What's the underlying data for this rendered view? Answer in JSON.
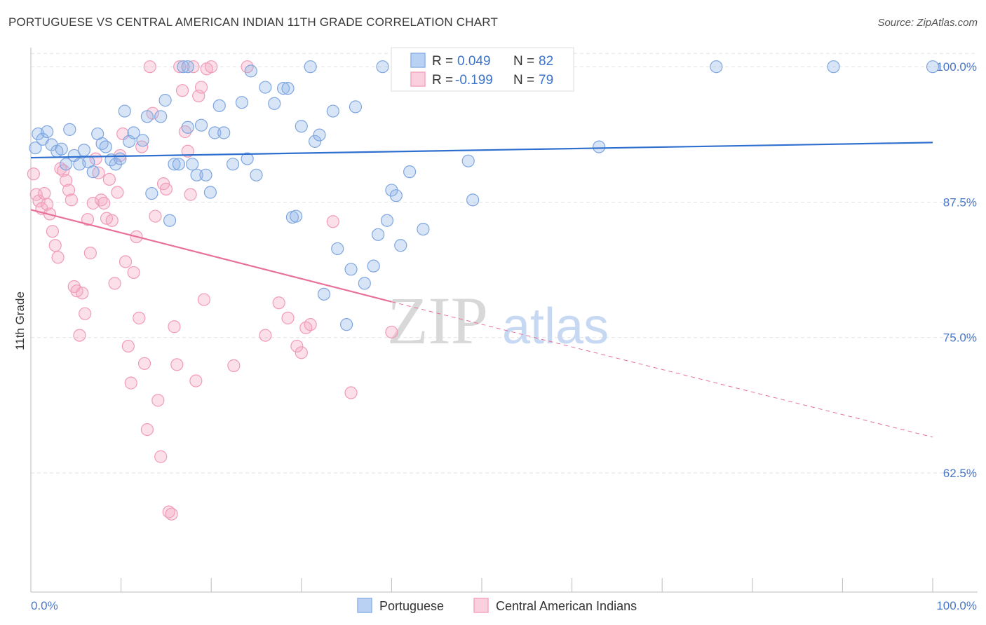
{
  "header": {
    "title": "PORTUGUESE VS CENTRAL AMERICAN INDIAN 11TH GRADE CORRELATION CHART",
    "source": "Source: ZipAtlas.com"
  },
  "watermark": {
    "zip": "ZIP",
    "atlas": "atlas"
  },
  "colors": {
    "blue": "#8fb4e8",
    "blue_line": "#2f6fcf",
    "pink": "#f4a6c0",
    "pink_line": "#e8709a",
    "axis_text": "#4a78c8"
  },
  "stats_legend": {
    "rows": [
      {
        "r_label": "R =",
        "r_value": "0.049",
        "n_label": "N =",
        "n_value": "82"
      },
      {
        "r_label": "R =",
        "r_value": "-0.199",
        "n_label": "N =",
        "n_value": "79"
      }
    ]
  },
  "chart_data": {
    "type": "scatter",
    "xlabel": "",
    "ylabel": "11th Grade",
    "xlim": [
      0,
      100
    ],
    "ylim": [
      51.5,
      101.5
    ],
    "x_ticks": [
      {
        "value": 0,
        "label": "0.0%"
      },
      {
        "value": 100,
        "label": "100.0%"
      }
    ],
    "y_ticks": [
      {
        "value": 100,
        "label": "100.0%"
      },
      {
        "value": 87.5,
        "label": "87.5%"
      },
      {
        "value": 75,
        "label": "75.0%"
      },
      {
        "value": 62.5,
        "label": "62.5%"
      }
    ],
    "grid": true,
    "legend_position": "bottom",
    "series": [
      {
        "name": "Portuguese",
        "color": "#8fb4e8",
        "trend": {
          "x0": 0,
          "y0": 91.6,
          "x1": 100,
          "y1": 93.0,
          "dashed_after": null
        },
        "points": [
          [
            0.5,
            92.5
          ],
          [
            0.8,
            93.8
          ],
          [
            1.3,
            93.3
          ],
          [
            1.8,
            94
          ],
          [
            2.3,
            92.8
          ],
          [
            2.9,
            92.2
          ],
          [
            3.4,
            92.4
          ],
          [
            3.9,
            91
          ],
          [
            4.3,
            94.2
          ],
          [
            4.8,
            91.8
          ],
          [
            5.4,
            91
          ],
          [
            5.9,
            92.3
          ],
          [
            6.4,
            91.2
          ],
          [
            6.9,
            90.3
          ],
          [
            7.4,
            93.8
          ],
          [
            7.9,
            92.9
          ],
          [
            8.3,
            92.6
          ],
          [
            8.9,
            91.4
          ],
          [
            9.4,
            91
          ],
          [
            9.9,
            91.5
          ],
          [
            10.4,
            95.9
          ],
          [
            10.9,
            93.1
          ],
          [
            11.4,
            93.9
          ],
          [
            12.4,
            93.2
          ],
          [
            12.9,
            95.4
          ],
          [
            13.4,
            88.3
          ],
          [
            14.4,
            95.4
          ],
          [
            14.9,
            96.9
          ],
          [
            15.4,
            85.8
          ],
          [
            15.9,
            91
          ],
          [
            16.4,
            91
          ],
          [
            16.9,
            100
          ],
          [
            17.4,
            100
          ],
          [
            17.4,
            94.4
          ],
          [
            17.9,
            91
          ],
          [
            18.4,
            90
          ],
          [
            18.9,
            94.6
          ],
          [
            19.4,
            90
          ],
          [
            19.9,
            88.4
          ],
          [
            20.4,
            93.9
          ],
          [
            20.9,
            96.4
          ],
          [
            21.4,
            93.9
          ],
          [
            22.4,
            91
          ],
          [
            23.4,
            96.7
          ],
          [
            24.0,
            91.5
          ],
          [
            24.4,
            99.6
          ],
          [
            25.0,
            90
          ],
          [
            26.0,
            98.1
          ],
          [
            27.0,
            96.6
          ],
          [
            28.0,
            98
          ],
          [
            28.5,
            98
          ],
          [
            29.0,
            86.1
          ],
          [
            29.4,
            86.2
          ],
          [
            30.0,
            94.5
          ],
          [
            31.0,
            100
          ],
          [
            31.5,
            93.1
          ],
          [
            32.0,
            93.7
          ],
          [
            32.5,
            79
          ],
          [
            33.5,
            95.9
          ],
          [
            34.0,
            83.2
          ],
          [
            35.0,
            76.2
          ],
          [
            35.5,
            81.3
          ],
          [
            36.0,
            96.3
          ],
          [
            37.0,
            80
          ],
          [
            38.0,
            81.6
          ],
          [
            38.5,
            84.5
          ],
          [
            39.0,
            100
          ],
          [
            39.5,
            85.8
          ],
          [
            40.0,
            88.6
          ],
          [
            40.5,
            88.1
          ],
          [
            41.0,
            83.5
          ],
          [
            42.0,
            90.3
          ],
          [
            43.5,
            85
          ],
          [
            45.0,
            100
          ],
          [
            48.5,
            91.3
          ],
          [
            49.0,
            87.7
          ],
          [
            54.0,
            100
          ],
          [
            55.0,
            100
          ],
          [
            63.0,
            92.6
          ],
          [
            76.0,
            100
          ],
          [
            89.0,
            100
          ],
          [
            100.0,
            100
          ]
        ]
      },
      {
        "name": "Central American Indians",
        "color": "#f4a6c0",
        "trend": {
          "x0": 0,
          "y0": 86.8,
          "x1": 40,
          "y1": 78.3,
          "dash_to_x": 100,
          "dash_to_y": 65.8
        },
        "points": [
          [
            0.3,
            90.1
          ],
          [
            0.6,
            88.2
          ],
          [
            0.9,
            87.6
          ],
          [
            1.2,
            86.9
          ],
          [
            1.5,
            88.3
          ],
          [
            1.8,
            87.3
          ],
          [
            2.1,
            86.4
          ],
          [
            2.4,
            84.8
          ],
          [
            2.7,
            83.5
          ],
          [
            3.0,
            82.4
          ],
          [
            3.3,
            90.6
          ],
          [
            3.6,
            90.4
          ],
          [
            3.9,
            89.5
          ],
          [
            4.2,
            88.6
          ],
          [
            4.5,
            87.7
          ],
          [
            4.8,
            79.7
          ],
          [
            5.1,
            79.3
          ],
          [
            5.4,
            75.2
          ],
          [
            5.7,
            79.1
          ],
          [
            6.0,
            77.2
          ],
          [
            6.3,
            85.9
          ],
          [
            6.6,
            82.8
          ],
          [
            6.9,
            87.4
          ],
          [
            7.2,
            91.5
          ],
          [
            7.5,
            90.2
          ],
          [
            7.8,
            87.7
          ],
          [
            8.1,
            87.4
          ],
          [
            8.4,
            86
          ],
          [
            8.7,
            89.6
          ],
          [
            9.0,
            85.8
          ],
          [
            9.3,
            80
          ],
          [
            9.6,
            88.4
          ],
          [
            9.9,
            91.8
          ],
          [
            10.2,
            93.8
          ],
          [
            10.5,
            82
          ],
          [
            10.8,
            74.2
          ],
          [
            11.1,
            70.8
          ],
          [
            11.4,
            81
          ],
          [
            11.7,
            84.3
          ],
          [
            12.0,
            76.8
          ],
          [
            12.3,
            92.6
          ],
          [
            12.6,
            72.6
          ],
          [
            12.9,
            66.5
          ],
          [
            13.2,
            100
          ],
          [
            13.5,
            95.7
          ],
          [
            13.8,
            86.2
          ],
          [
            14.1,
            69.2
          ],
          [
            14.4,
            64
          ],
          [
            14.7,
            89.2
          ],
          [
            15.0,
            88.7
          ],
          [
            15.3,
            58.9
          ],
          [
            15.6,
            58.7
          ],
          [
            15.9,
            76
          ],
          [
            16.2,
            72.5
          ],
          [
            16.5,
            100
          ],
          [
            16.8,
            97.8
          ],
          [
            17.1,
            94
          ],
          [
            17.4,
            92.2
          ],
          [
            17.7,
            88.2
          ],
          [
            18.0,
            100
          ],
          [
            18.3,
            71
          ],
          [
            18.6,
            97.3
          ],
          [
            18.9,
            98.1
          ],
          [
            19.2,
            78.5
          ],
          [
            19.5,
            99.8
          ],
          [
            20.0,
            100
          ],
          [
            22.5,
            72.4
          ],
          [
            24.0,
            100
          ],
          [
            26.0,
            75.2
          ],
          [
            27.5,
            78.2
          ],
          [
            28.5,
            76.8
          ],
          [
            29.5,
            74.2
          ],
          [
            30.0,
            73.6
          ],
          [
            30.5,
            75.9
          ],
          [
            31.0,
            76.2
          ],
          [
            33.5,
            85.7
          ],
          [
            35.5,
            69.9
          ],
          [
            40.0,
            75.5
          ],
          [
            41.0,
            100
          ]
        ]
      }
    ]
  },
  "bottom_legend": [
    {
      "label": "Portuguese"
    },
    {
      "label": "Central American Indians"
    }
  ]
}
